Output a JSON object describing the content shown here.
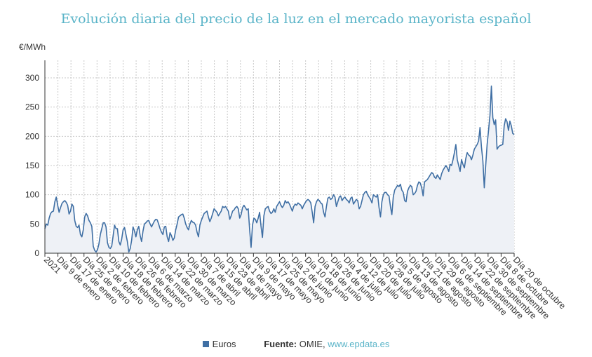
{
  "title": "Evolución diaria del precio de la luz en el mercado mayorista español",
  "legend": {
    "label": "Euros",
    "color": "#3f6fa4"
  },
  "source": {
    "label": "Fuente:",
    "text": "OMIE,",
    "link": "www.epdata.es"
  },
  "chart_data": {
    "type": "area",
    "title": "Evolución diaria del precio de la luz en el mercado mayorista español",
    "ylabel": "€/MWh",
    "xlabel": "",
    "ylim": [
      0,
      330
    ],
    "yticks": [
      0,
      50,
      100,
      150,
      200,
      250,
      300
    ],
    "grid": true,
    "legend_position": "bottom",
    "line_color": "#3f6fa4",
    "fill_color": "#eef1f6",
    "x_tick_labels": [
      "2021",
      "Día 9 de enero",
      "Día 17 de enero",
      "Día 25 de enero",
      "Día 2 de febrero",
      "Día 10 de febrero",
      "Día 18 de febrero",
      "Día 26 de febrero",
      "Día 6 de marzo",
      "Día 14 de marzo",
      "Día 22 de marzo",
      "Día 30 de marzo",
      "Día 7 de abril",
      "Día 15 de abril",
      "Día 23 de abril",
      "Día 1 de mayo",
      "Día 9 de mayo",
      "Día 17 de mayo",
      "Día 25 de mayo",
      "Día 2 de junio",
      "Día 10 de junio",
      "Día 18 de junio",
      "Día 26 de junio",
      "Día 4 de julio",
      "Día 12 de julio",
      "Día 20 de julio",
      "Día 28 de julio",
      "Día 5 de agosto",
      "Día 13 de agosto",
      "Día 21 de agosto",
      "Día 29 de agosto",
      "Día 6 de septiembre",
      "Día 14 de septiembre",
      "Día 22 de septiembre",
      "Día 30 de septiembre",
      "Día 8 de octubre",
      "Día 20 de octubre"
    ],
    "series": [
      {
        "name": "Euros",
        "values": [
          42,
          50,
          48,
          60,
          68,
          71,
          72,
          88,
          96,
          82,
          70,
          78,
          85,
          88,
          90,
          87,
          82,
          67,
          72,
          84,
          80,
          56,
          46,
          44,
          48,
          32,
          28,
          40,
          62,
          68,
          64,
          56,
          52,
          46,
          12,
          5,
          2,
          6,
          16,
          32,
          42,
          52,
          52,
          45,
          18,
          10,
          8,
          12,
          30,
          48,
          42,
          42,
          20,
          14,
          24,
          40,
          44,
          32,
          20,
          2,
          8,
          22,
          45,
          38,
          28,
          40,
          46,
          30,
          20,
          38,
          50,
          52,
          55,
          56,
          50,
          45,
          50,
          55,
          58,
          57,
          50,
          42,
          36,
          32,
          45,
          46,
          28,
          20,
          35,
          30,
          22,
          26,
          40,
          50,
          62,
          64,
          66,
          67,
          60,
          50,
          44,
          40,
          50,
          56,
          53,
          52,
          48,
          36,
          28,
          48,
          56,
          62,
          68,
          70,
          72,
          62,
          54,
          60,
          68,
          76,
          73,
          70,
          64,
          68,
          72,
          80,
          78,
          80,
          76,
          72,
          58,
          64,
          72,
          74,
          78,
          80,
          76,
          60,
          66,
          78,
          82,
          78,
          74,
          76,
          40,
          10,
          48,
          60,
          58,
          52,
          60,
          70,
          46,
          27,
          64,
          76,
          78,
          80,
          72,
          68,
          70,
          76,
          70,
          80,
          84,
          88,
          82,
          78,
          82,
          90,
          86,
          88,
          84,
          78,
          72,
          80,
          84,
          82,
          86,
          84,
          82,
          76,
          82,
          86,
          90,
          92,
          90,
          86,
          70,
          52,
          80,
          88,
          92,
          90,
          86,
          84,
          70,
          62,
          80,
          94,
          96,
          92,
          94,
          100,
          96,
          80,
          88,
          96,
          98,
          90,
          94,
          96,
          92,
          90,
          86,
          94,
          96,
          84,
          88,
          92,
          90,
          76,
          80,
          90,
          100,
          104,
          106,
          100,
          96,
          92,
          86,
          100,
          98,
          96,
          100,
          78,
          62,
          88,
          100,
          104,
          104,
          100,
          98,
          80,
          66,
          96,
          108,
          112,
          116,
          114,
          118,
          108,
          104,
          90,
          88,
          106,
          112,
          116,
          114,
          100,
          102,
          106,
          116,
          122,
          120,
          112,
          98,
          122,
          124,
          126,
          130,
          134,
          138,
          136,
          130,
          128,
          134,
          130,
          126,
          136,
          142,
          146,
          150,
          146,
          140,
          152,
          150,
          160,
          172,
          186,
          160,
          150,
          140,
          160,
          152,
          146,
          162,
          172,
          168,
          166,
          160,
          168,
          178,
          182,
          186,
          192,
          215,
          182,
          158,
          112,
          150,
          186,
          210,
          236,
          286,
          232,
          220,
          228,
          178,
          182,
          184,
          185,
          186,
          218,
          230,
          225,
          210,
          226,
          218,
          205,
          203
        ]
      }
    ]
  }
}
